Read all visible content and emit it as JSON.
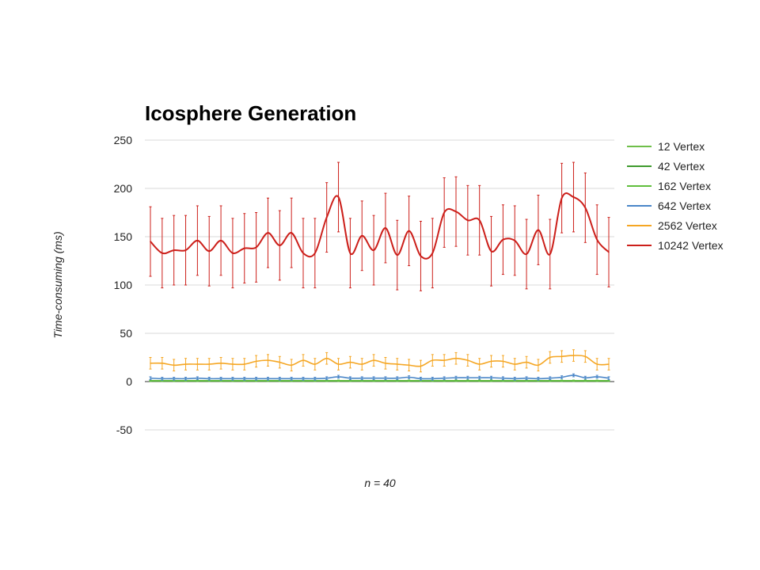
{
  "chart_data": {
    "type": "line",
    "title": "Icosphere Generation",
    "xlabel": "n = 40",
    "ylabel": "Time-consuming (ms)",
    "ylim": [
      -50,
      250
    ],
    "yticks": [
      "250",
      "200",
      "150",
      "100",
      "50",
      "0",
      "-50"
    ],
    "grid": true,
    "legend_position": "right",
    "x": [
      1,
      2,
      3,
      4,
      5,
      6,
      7,
      8,
      9,
      10,
      11,
      12,
      13,
      14,
      15,
      16,
      17,
      18,
      19,
      20,
      21,
      22,
      23,
      24,
      25,
      26,
      27,
      28,
      29,
      30,
      31,
      32,
      33,
      34,
      35,
      36,
      37,
      38,
      39,
      40
    ],
    "series": [
      {
        "name": "12 Vertex",
        "color": "#6fbf4a",
        "values": [
          0.5,
          0.5,
          0.5,
          0.5,
          0.5,
          0.5,
          0.5,
          0.5,
          0.5,
          0.5,
          0.5,
          0.5,
          0.5,
          0.5,
          0.5,
          0.5,
          0.5,
          0.5,
          0.5,
          0.5,
          0.5,
          0.5,
          0.5,
          0.5,
          0.5,
          0.5,
          0.5,
          0.5,
          0.5,
          0.5,
          0.5,
          0.5,
          0.5,
          0.5,
          0.5,
          0.5,
          0.5,
          0.5,
          0.5,
          0.5
        ],
        "errors": [
          0.3,
          0.3,
          0.3,
          0.3,
          0.3,
          0.3,
          0.3,
          0.3,
          0.3,
          0.3,
          0.3,
          0.3,
          0.3,
          0.3,
          0.3,
          0.3,
          0.3,
          0.3,
          0.3,
          0.3,
          0.3,
          0.3,
          0.3,
          0.3,
          0.3,
          0.3,
          0.3,
          0.3,
          0.3,
          0.3,
          0.3,
          0.3,
          0.3,
          0.3,
          0.3,
          0.3,
          0.3,
          0.3,
          0.3,
          0.3
        ]
      },
      {
        "name": "42 Vertex",
        "color": "#3f9a2e",
        "values": [
          0.7,
          0.7,
          0.7,
          0.7,
          0.7,
          0.7,
          0.7,
          0.7,
          0.7,
          0.7,
          0.7,
          0.7,
          0.7,
          0.7,
          0.7,
          0.7,
          0.7,
          0.7,
          0.7,
          0.7,
          0.7,
          0.7,
          0.7,
          0.7,
          0.7,
          0.7,
          0.7,
          0.7,
          0.7,
          0.7,
          0.7,
          0.7,
          0.7,
          0.7,
          0.7,
          0.7,
          0.7,
          0.7,
          0.7,
          0.7
        ],
        "errors": [
          0.4,
          0.4,
          0.4,
          0.4,
          0.4,
          0.4,
          0.4,
          0.4,
          0.4,
          0.4,
          0.4,
          0.4,
          0.4,
          0.4,
          0.4,
          0.4,
          0.4,
          0.4,
          0.4,
          0.4,
          0.4,
          0.4,
          0.4,
          0.4,
          0.4,
          0.4,
          0.4,
          0.4,
          0.4,
          0.4,
          0.4,
          0.4,
          0.4,
          0.4,
          0.4,
          0.4,
          0.4,
          0.4,
          0.4,
          0.4
        ]
      },
      {
        "name": "162 Vertex",
        "color": "#5fbe3c",
        "values": [
          1,
          1,
          1,
          1,
          1,
          1,
          1,
          1,
          1,
          1,
          1,
          1,
          1,
          1,
          1,
          1,
          1,
          1,
          1,
          1,
          1,
          1,
          1,
          1,
          1,
          1,
          1,
          1,
          1,
          1,
          1,
          1,
          1,
          1,
          1,
          1,
          1,
          1,
          1,
          1
        ],
        "errors": [
          0.6,
          0.6,
          0.6,
          0.6,
          0.6,
          0.6,
          0.6,
          0.6,
          0.6,
          0.6,
          0.6,
          0.6,
          0.6,
          0.6,
          0.6,
          0.6,
          0.6,
          0.6,
          0.6,
          0.6,
          0.6,
          0.6,
          0.6,
          0.6,
          0.6,
          0.6,
          0.6,
          0.6,
          0.6,
          0.6,
          0.6,
          0.6,
          0.6,
          0.6,
          0.6,
          0.6,
          0.6,
          0.6,
          0.6,
          0.6
        ]
      },
      {
        "name": "642 Vertex",
        "color": "#4a86c8",
        "values": [
          3.5,
          3,
          3,
          3,
          3.5,
          3,
          3,
          3,
          3,
          3,
          3,
          3,
          3,
          3,
          3,
          3.5,
          5,
          3.5,
          3.5,
          3.5,
          3.5,
          3.5,
          4.5,
          3,
          3,
          3.5,
          4,
          4,
          4,
          4,
          3.5,
          3,
          3.5,
          3,
          3.5,
          4.5,
          6.5,
          4,
          5,
          3.5
        ],
        "errors": [
          1.5,
          1.5,
          1.5,
          1.5,
          1.5,
          1.5,
          1.5,
          1.5,
          1.5,
          1.5,
          1.5,
          1.5,
          1.5,
          1.5,
          1.5,
          1.5,
          1.5,
          1.5,
          1.5,
          1.5,
          1.5,
          1.5,
          1.5,
          1.5,
          1.5,
          1.5,
          1.5,
          1.5,
          1.5,
          1.5,
          1.5,
          1.5,
          1.5,
          1.5,
          1.5,
          1.5,
          1.5,
          1.5,
          1.5,
          1.5
        ]
      },
      {
        "name": "2562 Vertex",
        "color": "#f5a623",
        "values": [
          19,
          19,
          17,
          18,
          18,
          18,
          19,
          18,
          18,
          21,
          22,
          20,
          17,
          22,
          18,
          24,
          18,
          20,
          18,
          22,
          19,
          18,
          17,
          16,
          22,
          22,
          24,
          22,
          18,
          21,
          21,
          18,
          20,
          17,
          25,
          26,
          27,
          26,
          18,
          18
        ],
        "errors": [
          6,
          6,
          6,
          6,
          6,
          6,
          6,
          6,
          6,
          6,
          6,
          6,
          6,
          6,
          6,
          6,
          6,
          6,
          6,
          6,
          6,
          6,
          6,
          6,
          6,
          6,
          6,
          6,
          6,
          6,
          6,
          6,
          6,
          6,
          6,
          6,
          6,
          6,
          6,
          6
        ]
      },
      {
        "name": "10242 Vertex",
        "color": "#cc1f1a",
        "values": [
          145,
          133,
          136,
          136,
          146,
          135,
          146,
          133,
          138,
          139,
          154,
          141,
          154,
          133,
          133,
          170,
          191,
          133,
          151,
          136,
          159,
          131,
          156,
          130,
          133,
          175,
          176,
          167,
          167,
          135,
          147,
          146,
          132,
          157,
          132,
          190,
          191,
          180,
          147,
          134
        ],
        "errors": [
          36,
          36,
          36,
          36,
          36,
          36,
          36,
          36,
          36,
          36,
          36,
          36,
          36,
          36,
          36,
          36,
          36,
          36,
          36,
          36,
          36,
          36,
          36,
          36,
          36,
          36,
          36,
          36,
          36,
          36,
          36,
          36,
          36,
          36,
          36,
          36,
          36,
          36,
          36,
          36
        ]
      }
    ]
  }
}
